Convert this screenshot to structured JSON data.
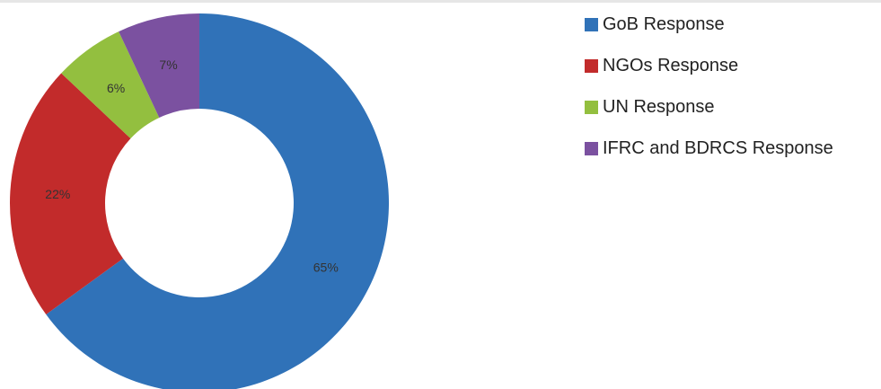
{
  "chart_data": {
    "type": "pie",
    "donut": true,
    "title": "",
    "categories": [
      "GoB Response",
      "NGOs Response",
      "UN Response",
      "IFRC and BDRCS Response"
    ],
    "values": [
      65,
      22,
      6,
      7
    ],
    "value_labels": [
      "65%",
      "22%",
      "6%",
      "7%"
    ],
    "colors": [
      "#3072B8",
      "#C22B2B",
      "#93BF3F",
      "#7B51A0"
    ],
    "start_angle_deg": 0,
    "direction": "clockwise",
    "legend_position": "right"
  }
}
